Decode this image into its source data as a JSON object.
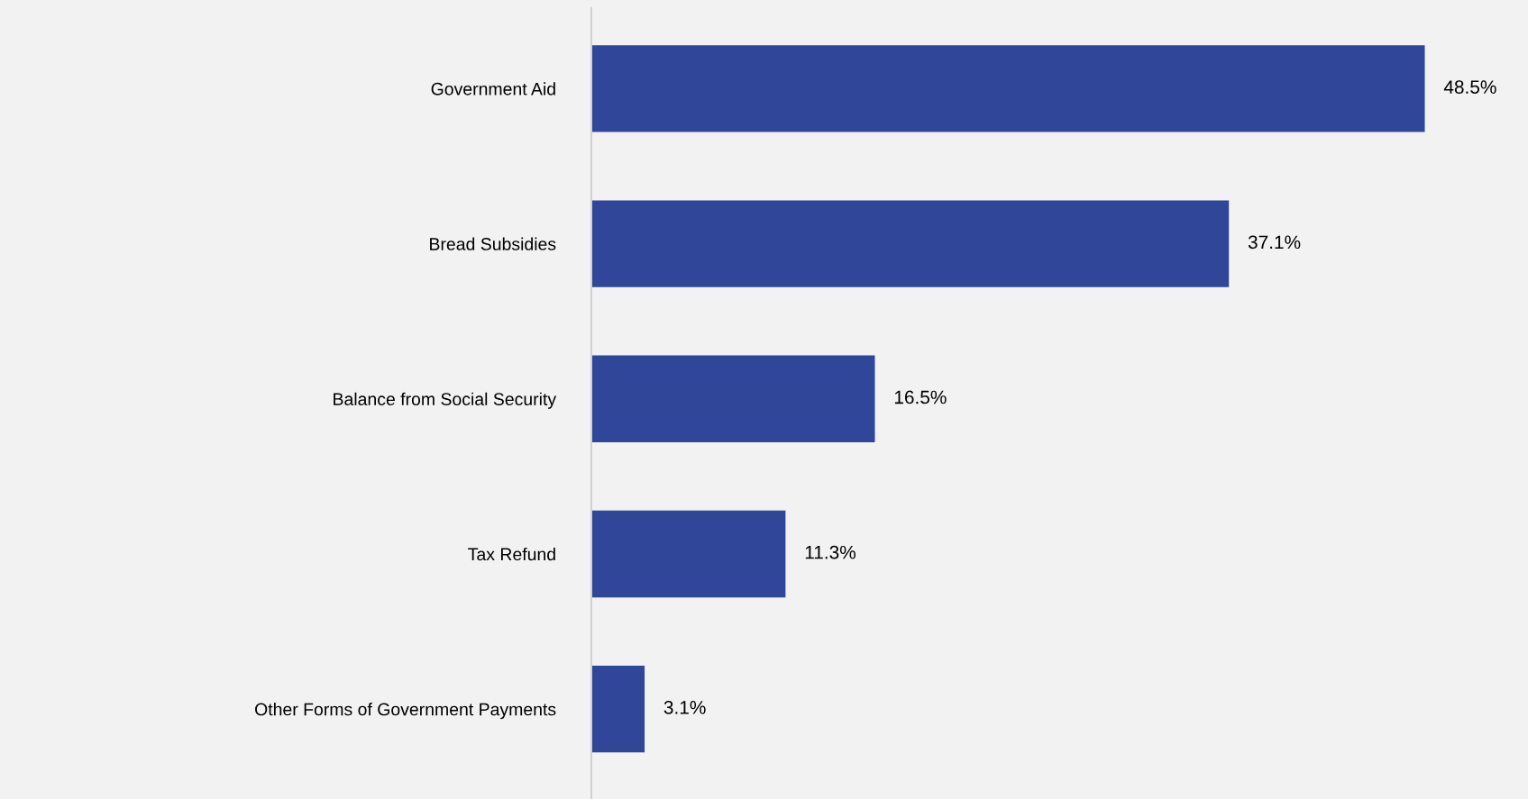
{
  "chart_data": {
    "type": "bar",
    "orientation": "horizontal",
    "categories": [
      "Government Aid",
      "Bread Subsidies",
      "Balance from Social Security",
      "Tax Refund",
      "Other Forms of Government Payments"
    ],
    "values": [
      48.5,
      37.1,
      16.5,
      11.3,
      3.1
    ],
    "value_labels": [
      "48.5%",
      "37.1%",
      "16.5%",
      "11.3%",
      "3.1%"
    ],
    "color": "#2f4699",
    "grid": false,
    "legend": false
  }
}
